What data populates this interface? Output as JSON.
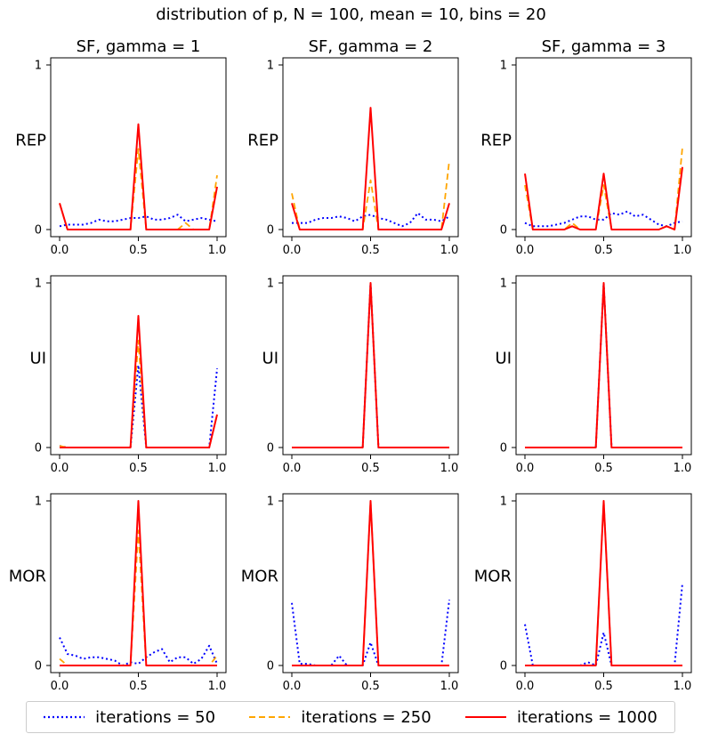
{
  "figure": {
    "suptitle": "distribution of p, N = 100, mean = 10, bins = 20",
    "colors": {
      "iter50": "#0000ff",
      "iter250": "#ffa500",
      "iter1000": "#ff0000"
    },
    "legend_placement": "bottom-center"
  },
  "legend": {
    "iter50": "iterations = 50",
    "iter250": "iterations = 250",
    "iter1000": "iterations = 1000"
  },
  "chart_data": [
    {
      "type": "line",
      "title": "SF, gamma = 1",
      "ylabel": "REP",
      "xlim": [
        0,
        1
      ],
      "ylim": [
        0,
        1
      ],
      "xticks": [
        "0.0",
        "0.5",
        "1.0"
      ],
      "yticks": [
        "0",
        "1"
      ],
      "x": [
        0,
        0.05,
        0.1,
        0.15,
        0.2,
        0.25,
        0.3,
        0.35,
        0.4,
        0.45,
        0.5,
        0.55,
        0.6,
        0.65,
        0.7,
        0.75,
        0.8,
        0.85,
        0.9,
        0.95,
        1.0
      ],
      "series": [
        {
          "name": "iterations = 50",
          "values": [
            0.02,
            0.03,
            0.03,
            0.03,
            0.04,
            0.06,
            0.05,
            0.05,
            0.06,
            0.07,
            0.07,
            0.08,
            0.06,
            0.06,
            0.07,
            0.09,
            0.05,
            0.06,
            0.07,
            0.06,
            0.05
          ]
        },
        {
          "name": "iterations = 250",
          "values": [
            0.16,
            0,
            0,
            0,
            0,
            0,
            0,
            0,
            0,
            0,
            0.49,
            0,
            0,
            0,
            0,
            0,
            0.04,
            0,
            0,
            0,
            0.33
          ]
        },
        {
          "name": "iterations = 1000",
          "values": [
            0.16,
            0,
            0,
            0,
            0,
            0,
            0,
            0,
            0,
            0,
            0.64,
            0,
            0,
            0,
            0,
            0,
            0,
            0,
            0,
            0,
            0.26
          ]
        }
      ]
    },
    {
      "type": "line",
      "title": "SF, gamma = 2",
      "ylabel": "REP",
      "xlim": [
        0,
        1
      ],
      "ylim": [
        0,
        1
      ],
      "xticks": [
        "0.0",
        "0.5",
        "1.0"
      ],
      "yticks": [
        "0",
        "1"
      ],
      "x": [
        0,
        0.05,
        0.1,
        0.15,
        0.2,
        0.25,
        0.3,
        0.35,
        0.4,
        0.45,
        0.5,
        0.55,
        0.6,
        0.65,
        0.7,
        0.75,
        0.8,
        0.85,
        0.9,
        0.95,
        1.0
      ],
      "series": [
        {
          "name": "iterations = 50",
          "values": [
            0.04,
            0.04,
            0.04,
            0.06,
            0.07,
            0.07,
            0.08,
            0.07,
            0.05,
            0.08,
            0.09,
            0.07,
            0.06,
            0.04,
            0.02,
            0.04,
            0.1,
            0.06,
            0.06,
            0.05,
            0.08
          ]
        },
        {
          "name": "iterations = 250",
          "values": [
            0.22,
            0,
            0,
            0,
            0,
            0,
            0,
            0,
            0,
            0,
            0.3,
            0,
            0,
            0,
            0,
            0,
            0,
            0,
            0,
            0,
            0.42
          ]
        },
        {
          "name": "iterations = 1000",
          "values": [
            0.16,
            0,
            0,
            0,
            0,
            0,
            0,
            0,
            0,
            0,
            0.74,
            0,
            0,
            0,
            0,
            0,
            0,
            0,
            0,
            0,
            0.16
          ]
        }
      ]
    },
    {
      "type": "line",
      "title": "SF, gamma = 3",
      "ylabel": "REP",
      "xlim": [
        0,
        1
      ],
      "ylim": [
        0,
        1
      ],
      "xticks": [
        "0.0",
        "0.5",
        "1.0"
      ],
      "yticks": [
        "0",
        "1"
      ],
      "x": [
        0,
        0.05,
        0.1,
        0.15,
        0.2,
        0.25,
        0.3,
        0.35,
        0.4,
        0.45,
        0.5,
        0.55,
        0.6,
        0.65,
        0.7,
        0.75,
        0.8,
        0.85,
        0.9,
        0.95,
        1.0
      ],
      "series": [
        {
          "name": "iterations = 50",
          "values": [
            0.04,
            0.02,
            0.02,
            0.02,
            0.03,
            0.04,
            0.06,
            0.08,
            0.08,
            0.06,
            0.06,
            0.1,
            0.09,
            0.11,
            0.08,
            0.09,
            0.06,
            0.03,
            0.02,
            0.04,
            0.05
          ]
        },
        {
          "name": "iterations = 250",
          "values": [
            0.27,
            0,
            0,
            0,
            0,
            0,
            0.04,
            0,
            0,
            0,
            0.27,
            0,
            0,
            0,
            0,
            0,
            0,
            0,
            0.02,
            0,
            0.5
          ]
        },
        {
          "name": "iterations = 1000",
          "values": [
            0.34,
            0,
            0,
            0,
            0,
            0,
            0.02,
            0,
            0,
            0,
            0.34,
            0,
            0,
            0,
            0,
            0,
            0,
            0,
            0.02,
            0,
            0.38
          ]
        }
      ]
    },
    {
      "type": "line",
      "ylabel": "UI",
      "xlim": [
        0,
        1
      ],
      "ylim": [
        0,
        1
      ],
      "xticks": [
        "0.0",
        "0.5",
        "1.0"
      ],
      "yticks": [
        "0",
        "1"
      ],
      "x": [
        0,
        0.05,
        0.1,
        0.15,
        0.2,
        0.25,
        0.3,
        0.35,
        0.4,
        0.45,
        0.5,
        0.55,
        0.6,
        0.65,
        0.7,
        0.75,
        0.8,
        0.85,
        0.9,
        0.95,
        1.0
      ],
      "series": [
        {
          "name": "iterations = 50",
          "values": [
            0.01,
            0,
            0,
            0,
            0,
            0,
            0,
            0,
            0,
            0,
            0.5,
            0,
            0,
            0,
            0,
            0,
            0,
            0,
            0,
            0,
            0.48
          ]
        },
        {
          "name": "iterations = 250",
          "values": [
            0.01,
            0,
            0,
            0,
            0,
            0,
            0,
            0,
            0,
            0,
            0.65,
            0,
            0,
            0,
            0,
            0,
            0,
            0,
            0,
            0,
            0.2
          ]
        },
        {
          "name": "iterations = 1000",
          "values": [
            0,
            0,
            0,
            0,
            0,
            0,
            0,
            0,
            0,
            0,
            0.8,
            0,
            0,
            0,
            0,
            0,
            0,
            0,
            0,
            0,
            0.2
          ]
        }
      ]
    },
    {
      "type": "line",
      "ylabel": "UI",
      "xlim": [
        0,
        1
      ],
      "ylim": [
        0,
        1
      ],
      "xticks": [
        "0.0",
        "0.5",
        "1.0"
      ],
      "yticks": [
        "0",
        "1"
      ],
      "x": [
        0,
        0.05,
        0.1,
        0.15,
        0.2,
        0.25,
        0.3,
        0.35,
        0.4,
        0.45,
        0.5,
        0.55,
        0.6,
        0.65,
        0.7,
        0.75,
        0.8,
        0.85,
        0.9,
        0.95,
        1.0
      ],
      "series": [
        {
          "name": "iterations = 50",
          "values": [
            0,
            0,
            0,
            0,
            0,
            0,
            0,
            0,
            0,
            0,
            1,
            0,
            0,
            0,
            0,
            0,
            0,
            0,
            0,
            0,
            0
          ]
        },
        {
          "name": "iterations = 250",
          "values": [
            0,
            0,
            0,
            0,
            0,
            0,
            0,
            0,
            0,
            0,
            1,
            0,
            0,
            0,
            0,
            0,
            0,
            0,
            0,
            0,
            0
          ]
        },
        {
          "name": "iterations = 1000",
          "values": [
            0,
            0,
            0,
            0,
            0,
            0,
            0,
            0,
            0,
            0,
            1,
            0,
            0,
            0,
            0,
            0,
            0,
            0,
            0,
            0,
            0
          ]
        }
      ]
    },
    {
      "type": "line",
      "ylabel": "UI",
      "xlim": [
        0,
        1
      ],
      "ylim": [
        0,
        1
      ],
      "xticks": [
        "0.0",
        "0.5",
        "1.0"
      ],
      "yticks": [
        "0",
        "1"
      ],
      "x": [
        0,
        0.05,
        0.1,
        0.15,
        0.2,
        0.25,
        0.3,
        0.35,
        0.4,
        0.45,
        0.5,
        0.55,
        0.6,
        0.65,
        0.7,
        0.75,
        0.8,
        0.85,
        0.9,
        0.95,
        1.0
      ],
      "series": [
        {
          "name": "iterations = 50",
          "values": [
            0,
            0,
            0,
            0,
            0,
            0,
            0,
            0,
            0,
            0,
            1,
            0,
            0,
            0,
            0,
            0,
            0,
            0,
            0,
            0,
            0
          ]
        },
        {
          "name": "iterations = 250",
          "values": [
            0,
            0,
            0,
            0,
            0,
            0,
            0,
            0,
            0,
            0,
            1,
            0,
            0,
            0,
            0,
            0,
            0,
            0,
            0,
            0,
            0
          ]
        },
        {
          "name": "iterations = 1000",
          "values": [
            0,
            0,
            0,
            0,
            0,
            0,
            0,
            0,
            0,
            0,
            1,
            0,
            0,
            0,
            0,
            0,
            0,
            0,
            0,
            0,
            0
          ]
        }
      ]
    },
    {
      "type": "line",
      "ylabel": "MOR",
      "xlim": [
        0,
        1
      ],
      "ylim": [
        0,
        1
      ],
      "xticks": [
        "0.0",
        "0.5",
        "1.0"
      ],
      "yticks": [
        "0",
        "1"
      ],
      "x": [
        0,
        0.05,
        0.1,
        0.15,
        0.2,
        0.25,
        0.3,
        0.35,
        0.4,
        0.45,
        0.5,
        0.55,
        0.6,
        0.65,
        0.7,
        0.75,
        0.8,
        0.85,
        0.9,
        0.95,
        1.0
      ],
      "series": [
        {
          "name": "iterations = 50",
          "values": [
            0.17,
            0.07,
            0.06,
            0.04,
            0.05,
            0.05,
            0.04,
            0.03,
            0,
            0.02,
            0.01,
            0.05,
            0.08,
            0.1,
            0.02,
            0.05,
            0.05,
            0.01,
            0.04,
            0.12,
            0.01
          ]
        },
        {
          "name": "iterations = 250",
          "values": [
            0.04,
            0,
            0,
            0,
            0,
            0,
            0,
            0,
            0,
            0,
            0.82,
            0,
            0,
            0,
            0,
            0,
            0,
            0,
            0,
            0,
            0.06
          ]
        },
        {
          "name": "iterations = 1000",
          "values": [
            0,
            0,
            0,
            0,
            0,
            0,
            0,
            0,
            0,
            0,
            1,
            0,
            0,
            0,
            0,
            0,
            0,
            0,
            0,
            0,
            0
          ]
        }
      ]
    },
    {
      "type": "line",
      "ylabel": "MOR",
      "xlim": [
        0,
        1
      ],
      "ylim": [
        0,
        1
      ],
      "xticks": [
        "0.0",
        "0.5",
        "1.0"
      ],
      "yticks": [
        "0",
        "1"
      ],
      "x": [
        0,
        0.05,
        0.1,
        0.15,
        0.2,
        0.25,
        0.3,
        0.35,
        0.4,
        0.45,
        0.5,
        0.55,
        0.6,
        0.65,
        0.7,
        0.75,
        0.8,
        0.85,
        0.9,
        0.95,
        1.0
      ],
      "series": [
        {
          "name": "iterations = 50",
          "values": [
            0.38,
            0.01,
            0.01,
            0,
            0,
            0,
            0.06,
            0,
            0,
            0,
            0.14,
            0,
            0,
            0,
            0,
            0,
            0,
            0,
            0,
            0,
            0.4
          ]
        },
        {
          "name": "iterations = 250",
          "values": [
            0,
            0,
            0,
            0,
            0,
            0,
            0,
            0,
            0,
            0,
            1,
            0,
            0,
            0,
            0,
            0,
            0,
            0,
            0,
            0,
            0
          ]
        },
        {
          "name": "iterations = 1000",
          "values": [
            0,
            0,
            0,
            0,
            0,
            0,
            0,
            0,
            0,
            0,
            1,
            0,
            0,
            0,
            0,
            0,
            0,
            0,
            0,
            0,
            0
          ]
        }
      ]
    },
    {
      "type": "line",
      "ylabel": "MOR",
      "xlim": [
        0,
        1
      ],
      "ylim": [
        0,
        1
      ],
      "xticks": [
        "0.0",
        "0.5",
        "1.0"
      ],
      "yticks": [
        "0",
        "1"
      ],
      "x": [
        0,
        0.05,
        0.1,
        0.15,
        0.2,
        0.25,
        0.3,
        0.35,
        0.4,
        0.45,
        0.5,
        0.55,
        0.6,
        0.65,
        0.7,
        0.75,
        0.8,
        0.85,
        0.9,
        0.95,
        1.0
      ],
      "series": [
        {
          "name": "iterations = 50",
          "values": [
            0.25,
            0,
            0,
            0,
            0,
            0,
            0,
            0,
            0.02,
            0,
            0.2,
            0,
            0,
            0,
            0,
            0,
            0,
            0,
            0,
            0,
            0.5
          ]
        },
        {
          "name": "iterations = 250",
          "values": [
            0,
            0,
            0,
            0,
            0,
            0,
            0,
            0,
            0,
            0,
            1,
            0,
            0,
            0,
            0,
            0,
            0,
            0,
            0,
            0,
            0
          ]
        },
        {
          "name": "iterations = 1000",
          "values": [
            0,
            0,
            0,
            0,
            0,
            0,
            0,
            0,
            0,
            0,
            1,
            0,
            0,
            0,
            0,
            0,
            0,
            0,
            0,
            0,
            0
          ]
        }
      ]
    }
  ]
}
